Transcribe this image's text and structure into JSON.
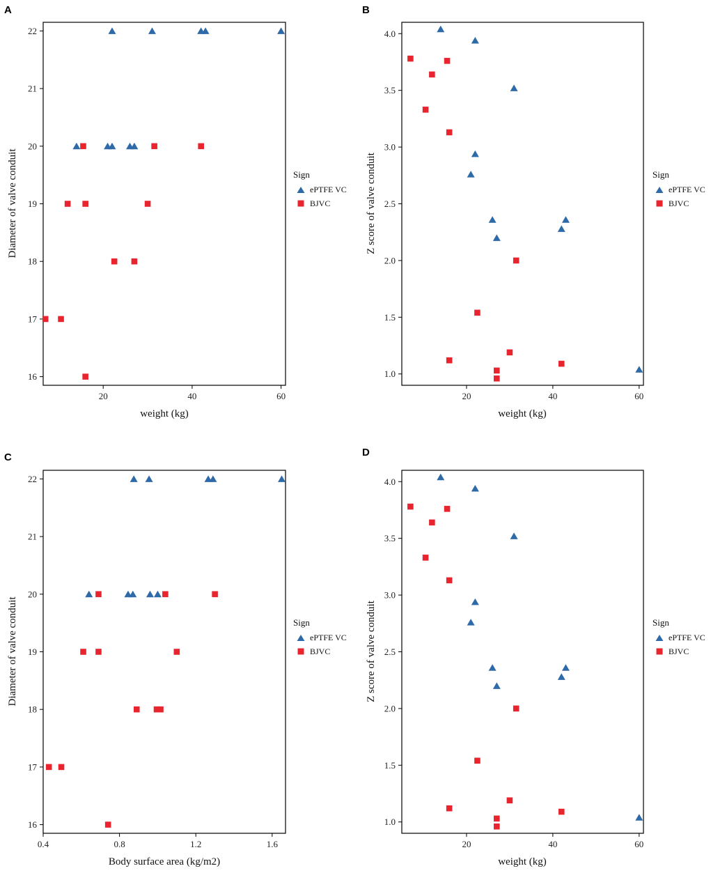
{
  "colors": {
    "epTFE": "#2e6aa8",
    "bjvc": "#e8252f",
    "frame": "#000000"
  },
  "chart_data": [
    {
      "panel": "A",
      "type": "scatter",
      "xlabel": "weight (kg)",
      "ylabel": "Diameter of valve conduit",
      "xlim": [
        6.5,
        61
      ],
      "ylim": [
        15.85,
        22.15
      ],
      "xticks": [
        {
          "value": 20,
          "label": "20"
        },
        {
          "value": 40,
          "label": "40"
        },
        {
          "value": 60,
          "label": "60"
        }
      ],
      "yticks": [
        {
          "value": 16,
          "label": "16"
        },
        {
          "value": 17,
          "label": "17"
        },
        {
          "value": 18,
          "label": "18"
        },
        {
          "value": 19,
          "label": "19"
        },
        {
          "value": 20,
          "label": "20"
        },
        {
          "value": 21,
          "label": "21"
        },
        {
          "value": 22,
          "label": "22"
        }
      ],
      "legend": {
        "title": "Sign",
        "entries": [
          {
            "label": "ePTFE VC",
            "shape": "triangle",
            "series": "ePTFE VC"
          },
          {
            "label": "BJVC",
            "shape": "square",
            "series": "BJVC"
          }
        ]
      },
      "series": [
        {
          "name": "ePTFE VC",
          "shape": "triangle",
          "points": [
            {
              "x": 22,
              "y": 22
            },
            {
              "x": 31,
              "y": 22
            },
            {
              "x": 42,
              "y": 22
            },
            {
              "x": 43,
              "y": 22
            },
            {
              "x": 60,
              "y": 22
            },
            {
              "x": 14,
              "y": 20
            },
            {
              "x": 21,
              "y": 20
            },
            {
              "x": 22,
              "y": 20
            },
            {
              "x": 26,
              "y": 20
            },
            {
              "x": 27,
              "y": 20
            }
          ]
        },
        {
          "name": "BJVC",
          "shape": "square",
          "points": [
            {
              "x": 15.5,
              "y": 20
            },
            {
              "x": 31.5,
              "y": 20
            },
            {
              "x": 42,
              "y": 20
            },
            {
              "x": 12,
              "y": 19
            },
            {
              "x": 16,
              "y": 19
            },
            {
              "x": 30,
              "y": 19
            },
            {
              "x": 22.5,
              "y": 18
            },
            {
              "x": 27,
              "y": 18
            },
            {
              "x": 7,
              "y": 17
            },
            {
              "x": 10.5,
              "y": 17
            },
            {
              "x": 16,
              "y": 16
            }
          ]
        }
      ]
    },
    {
      "panel": "B",
      "type": "scatter",
      "xlabel": "weight (kg)",
      "ylabel": "Z score of valve conduit",
      "xlim": [
        5,
        61
      ],
      "ylim": [
        0.9,
        4.1
      ],
      "xticks": [
        {
          "value": 20,
          "label": "20"
        },
        {
          "value": 40,
          "label": "40"
        },
        {
          "value": 60,
          "label": "60"
        }
      ],
      "yticks": [
        {
          "value": 1.0,
          "label": "1.0"
        },
        {
          "value": 1.5,
          "label": "1.5"
        },
        {
          "value": 2.0,
          "label": "2.0"
        },
        {
          "value": 2.5,
          "label": "2.5"
        },
        {
          "value": 3.0,
          "label": "3.0"
        },
        {
          "value": 3.5,
          "label": "3.5"
        },
        {
          "value": 4.0,
          "label": "4.0"
        }
      ],
      "legend": {
        "title": "Sign",
        "entries": [
          {
            "label": "ePTFE VC",
            "shape": "triangle",
            "series": "ePTFE VC"
          },
          {
            "label": "BJVC",
            "shape": "square",
            "series": "BJVC"
          }
        ]
      },
      "series": [
        {
          "name": "ePTFE VC",
          "shape": "triangle",
          "points": [
            {
              "x": 14,
              "y": 4.04
            },
            {
              "x": 22,
              "y": 3.94
            },
            {
              "x": 31,
              "y": 3.52
            },
            {
              "x": 22,
              "y": 2.94
            },
            {
              "x": 21,
              "y": 2.76
            },
            {
              "x": 26,
              "y": 2.36
            },
            {
              "x": 27,
              "y": 2.2
            },
            {
              "x": 42,
              "y": 2.28
            },
            {
              "x": 43,
              "y": 2.36
            },
            {
              "x": 60,
              "y": 1.04
            }
          ]
        },
        {
          "name": "BJVC",
          "shape": "square",
          "points": [
            {
              "x": 7,
              "y": 3.78
            },
            {
              "x": 12,
              "y": 3.64
            },
            {
              "x": 15.5,
              "y": 3.76
            },
            {
              "x": 10.5,
              "y": 3.33
            },
            {
              "x": 16,
              "y": 3.13
            },
            {
              "x": 31.5,
              "y": 2.0
            },
            {
              "x": 22.5,
              "y": 1.54
            },
            {
              "x": 16,
              "y": 1.12
            },
            {
              "x": 30,
              "y": 1.19
            },
            {
              "x": 42,
              "y": 1.09
            },
            {
              "x": 27,
              "y": 1.03
            },
            {
              "x": 27,
              "y": 0.96
            }
          ]
        }
      ]
    },
    {
      "panel": "C",
      "type": "scatter",
      "xlabel": "Body surface area (kg/m2)",
      "ylabel": "Diameter of valve conduit",
      "xlim": [
        0.4,
        1.67
      ],
      "ylim": [
        15.85,
        22.15
      ],
      "xticks": [
        {
          "value": 0.4,
          "label": "0.4"
        },
        {
          "value": 0.8,
          "label": "0.8"
        },
        {
          "value": 1.2,
          "label": "1.2"
        },
        {
          "value": 1.6,
          "label": "1.6"
        }
      ],
      "yticks": [
        {
          "value": 16,
          "label": "16"
        },
        {
          "value": 17,
          "label": "17"
        },
        {
          "value": 18,
          "label": "18"
        },
        {
          "value": 19,
          "label": "19"
        },
        {
          "value": 20,
          "label": "20"
        },
        {
          "value": 21,
          "label": "21"
        },
        {
          "value": 22,
          "label": "22"
        }
      ],
      "legend": {
        "title": "Sign",
        "entries": [
          {
            "label": "ePTFE VC",
            "shape": "triangle",
            "series": "ePTFE VC"
          },
          {
            "label": "BJVC",
            "shape": "square",
            "series": "BJVC"
          }
        ]
      },
      "series": [
        {
          "name": "ePTFE VC",
          "shape": "triangle",
          "points": [
            {
              "x": 0.875,
              "y": 22
            },
            {
              "x": 0.955,
              "y": 22
            },
            {
              "x": 1.265,
              "y": 22
            },
            {
              "x": 1.29,
              "y": 22
            },
            {
              "x": 1.65,
              "y": 22
            },
            {
              "x": 0.64,
              "y": 20
            },
            {
              "x": 0.845,
              "y": 20
            },
            {
              "x": 0.87,
              "y": 20
            },
            {
              "x": 0.96,
              "y": 20
            },
            {
              "x": 1.0,
              "y": 20
            }
          ]
        },
        {
          "name": "BJVC",
          "shape": "square",
          "points": [
            {
              "x": 0.69,
              "y": 20
            },
            {
              "x": 1.04,
              "y": 20
            },
            {
              "x": 1.3,
              "y": 20
            },
            {
              "x": 0.61,
              "y": 19
            },
            {
              "x": 0.69,
              "y": 19
            },
            {
              "x": 1.1,
              "y": 19
            },
            {
              "x": 0.89,
              "y": 18
            },
            {
              "x": 0.995,
              "y": 18
            },
            {
              "x": 1.015,
              "y": 18
            },
            {
              "x": 0.43,
              "y": 17
            },
            {
              "x": 0.495,
              "y": 17
            },
            {
              "x": 0.74,
              "y": 16
            }
          ]
        }
      ]
    },
    {
      "panel": "D",
      "type": "scatter",
      "xlabel": "weight (kg)",
      "ylabel": "Z score of valve conduit",
      "xlim": [
        5,
        61
      ],
      "ylim": [
        0.9,
        4.1
      ],
      "xticks": [
        {
          "value": 20,
          "label": "20"
        },
        {
          "value": 40,
          "label": "40"
        },
        {
          "value": 60,
          "label": "60"
        }
      ],
      "yticks": [
        {
          "value": 1.0,
          "label": "1.0"
        },
        {
          "value": 1.5,
          "label": "1.5"
        },
        {
          "value": 2.0,
          "label": "2.0"
        },
        {
          "value": 2.5,
          "label": "2.5"
        },
        {
          "value": 3.0,
          "label": "3.0"
        },
        {
          "value": 3.5,
          "label": "3.5"
        },
        {
          "value": 4.0,
          "label": "4.0"
        }
      ],
      "legend": {
        "title": "Sign",
        "entries": [
          {
            "label": "ePTFE VC",
            "shape": "triangle",
            "series": "ePTFE VC"
          },
          {
            "label": "BJVC",
            "shape": "square",
            "series": "BJVC"
          }
        ]
      },
      "series": [
        {
          "name": "ePTFE VC",
          "shape": "triangle",
          "points": [
            {
              "x": 14,
              "y": 4.04
            },
            {
              "x": 22,
              "y": 3.94
            },
            {
              "x": 31,
              "y": 3.52
            },
            {
              "x": 22,
              "y": 2.94
            },
            {
              "x": 21,
              "y": 2.76
            },
            {
              "x": 26,
              "y": 2.36
            },
            {
              "x": 27,
              "y": 2.2
            },
            {
              "x": 42,
              "y": 2.28
            },
            {
              "x": 43,
              "y": 2.36
            },
            {
              "x": 60,
              "y": 1.04
            }
          ]
        },
        {
          "name": "BJVC",
          "shape": "square",
          "points": [
            {
              "x": 7,
              "y": 3.78
            },
            {
              "x": 12,
              "y": 3.64
            },
            {
              "x": 15.5,
              "y": 3.76
            },
            {
              "x": 10.5,
              "y": 3.33
            },
            {
              "x": 16,
              "y": 3.13
            },
            {
              "x": 31.5,
              "y": 2.0
            },
            {
              "x": 22.5,
              "y": 1.54
            },
            {
              "x": 16,
              "y": 1.12
            },
            {
              "x": 30,
              "y": 1.19
            },
            {
              "x": 42,
              "y": 1.09
            },
            {
              "x": 27,
              "y": 1.03
            },
            {
              "x": 27,
              "y": 0.96
            }
          ]
        }
      ]
    }
  ]
}
